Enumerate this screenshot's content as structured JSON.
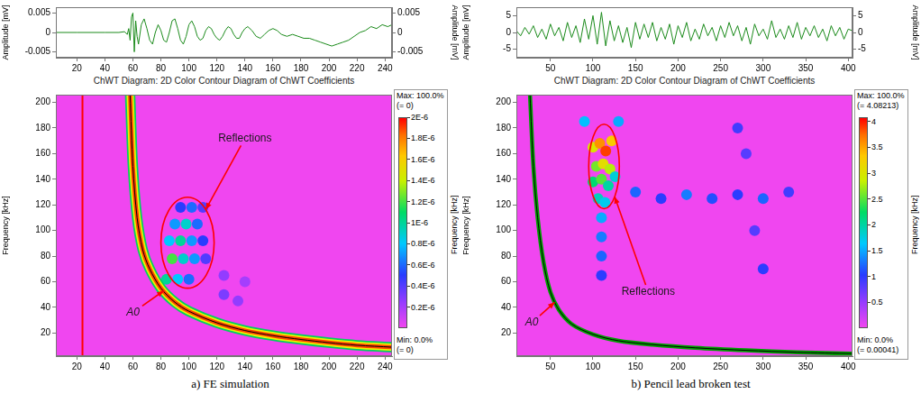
{
  "chart_data": [
    {
      "type": "line",
      "color": "#1a8a1a",
      "grid": false,
      "x": [
        5,
        20,
        40,
        50,
        54,
        56,
        57,
        58,
        59,
        60,
        61,
        62,
        63,
        64,
        66,
        68,
        70,
        72,
        74,
        76,
        78,
        80,
        82,
        84,
        86,
        88,
        90,
        92,
        94,
        96,
        98,
        100,
        102,
        104,
        106,
        108,
        110,
        112,
        114,
        116,
        118,
        120,
        122,
        124,
        126,
        128,
        130,
        132,
        134,
        136,
        138,
        140,
        142,
        145,
        148,
        151,
        154,
        157,
        160,
        163,
        166,
        170,
        174,
        178,
        182,
        186,
        190,
        194,
        198,
        202,
        206,
        210,
        214,
        218,
        222,
        226,
        230,
        234,
        238,
        242,
        245
      ],
      "values": [
        0,
        0,
        0,
        0,
        0.0002,
        -0.0005,
        0.001,
        -0.002,
        0.004,
        0.005,
        -0.005,
        0.003,
        -0.001,
        -0.003,
        0.002,
        0.0035,
        0.001,
        -0.002,
        -0.003,
        0,
        0.002,
        0.0005,
        -0.002,
        -0.0025,
        0,
        0.003,
        0.0035,
        0.001,
        -0.002,
        -0.003,
        -0.001,
        0.002,
        0.003,
        0.0015,
        -0.001,
        -0.002,
        -0.0015,
        0.0005,
        0.0015,
        0.001,
        -0.0005,
        -0.0015,
        -0.002,
        -0.001,
        0.0005,
        0.0015,
        0.001,
        -0.0005,
        -0.0015,
        -0.0015,
        0,
        0.001,
        0.0015,
        0.0005,
        -0.001,
        -0.0015,
        -0.0005,
        0.0005,
        0.001,
        0.0005,
        -0.0005,
        -0.001,
        -0.0005,
        -0.001,
        -0.0015,
        -0.0015,
        -0.002,
        -0.0025,
        -0.003,
        -0.0035,
        -0.003,
        -0.0025,
        -0.002,
        -0.001,
        0,
        0.0005,
        0.0015,
        0.001,
        0.002,
        0.0015,
        0.002
      ],
      "xlim": [
        5,
        245
      ],
      "xticks": [
        20,
        40,
        60,
        80,
        100,
        120,
        140,
        160,
        180,
        200,
        220,
        240
      ],
      "ylim": [
        -0.0065,
        0.0065
      ],
      "yticks": [
        -0.005,
        0,
        0.005
      ],
      "y_label": "Amplitude [mV]",
      "y2lim": [
        -0.0065,
        0.0065
      ],
      "y2ticks": [
        -0.005,
        0,
        0.005
      ],
      "y2_label": "Amplitude [mV]"
    },
    {
      "type": "contour",
      "grid": false,
      "title": "ChWT Diagram: 2D Color Contour Diagram of ChWT Coefficients",
      "caption": "a) FE simulation",
      "xlim": [
        5,
        245
      ],
      "xticks": [
        20,
        40,
        60,
        80,
        100,
        120,
        140,
        160,
        180,
        200,
        220,
        240
      ],
      "ylim": [
        2,
        206
      ],
      "yticks": [
        20,
        40,
        60,
        80,
        100,
        120,
        140,
        160,
        180,
        200
      ],
      "y_label": "Frequency [kHz]",
      "y2_label": "Frequency [kHz]",
      "vline": {
        "x": 24,
        "color": "#ff0000"
      },
      "ridge": {
        "x": [
          58,
          60,
          63,
          67,
          72,
          80,
          90,
          100,
          120,
          140,
          160,
          180,
          200,
          220,
          245
        ],
        "y": [
          206,
          150,
          110,
          85,
          70,
          55,
          44,
          37,
          28,
          22,
          18,
          15,
          12.5,
          10.5,
          9
        ],
        "colors": [
          "#00d060",
          "#f0f000",
          "#ff4000",
          "#000000"
        ]
      },
      "cells": {
        "x": [
          84,
          92,
          100,
          88,
          96,
          104,
          112,
          86,
          94,
          102,
          110,
          90,
          98,
          106,
          94,
          102,
          110,
          125,
          135,
          125,
          140
        ],
        "y": [
          62,
          62,
          62,
          78,
          78,
          78,
          78,
          92,
          92,
          92,
          92,
          105,
          105,
          105,
          118,
          118,
          118,
          50,
          45,
          65,
          60
        ],
        "z": [
          1e-06,
          8e-07,
          6e-07,
          1.2e-06,
          9e-07,
          7e-07,
          4e-07,
          8e-07,
          1e-06,
          7e-07,
          5e-07,
          7e-07,
          9e-07,
          6e-07,
          5e-07,
          6e-07,
          4e-07,
          3e-07,
          2.5e-07,
          2.5e-07,
          2e-07
        ]
      },
      "colorbar": {
        "range": [
          0,
          2e-06
        ],
        "ticks": [
          {
            "value": 2e-06,
            "label": "2E-6"
          },
          {
            "value": 1.8e-06,
            "label": "1.8E-6"
          },
          {
            "value": 1.6e-06,
            "label": "1.6E-6"
          },
          {
            "value": 1.4e-06,
            "label": "1.4E-6"
          },
          {
            "value": 1.2e-06,
            "label": "1.2E-6"
          },
          {
            "value": 1e-06,
            "label": "1E-6"
          },
          {
            "value": 8e-07,
            "label": "0.8E-6"
          },
          {
            "value": 6e-07,
            "label": "0.6E-6"
          },
          {
            "value": 4e-07,
            "label": "0.4E-6"
          },
          {
            "value": 2e-07,
            "label": "0.2E-6"
          }
        ],
        "max_label": "Max: 100.0%",
        "max_note": "(= 0)",
        "min_label": "Min: 0.0%",
        "min_note": "(= 0)"
      },
      "annotations": [
        {
          "text": "Reflections",
          "at": [
            140,
            172
          ],
          "ellipse": {
            "x": [
              80,
              118
            ],
            "y": [
              55,
              126
            ]
          }
        },
        {
          "text": "A0",
          "at": [
            60,
            36
          ],
          "target": [
            82,
            53
          ]
        }
      ]
    },
    {
      "type": "line",
      "color": "#1a8a1a",
      "grid": false,
      "x": [
        10,
        15,
        20,
        25,
        30,
        35,
        40,
        45,
        50,
        55,
        60,
        65,
        70,
        75,
        80,
        85,
        90,
        95,
        100,
        105,
        110,
        115,
        120,
        125,
        130,
        135,
        140,
        145,
        150,
        155,
        160,
        165,
        170,
        175,
        180,
        185,
        190,
        195,
        200,
        205,
        210,
        215,
        220,
        225,
        230,
        235,
        240,
        245,
        250,
        255,
        260,
        265,
        270,
        275,
        280,
        285,
        290,
        295,
        300,
        305,
        310,
        315,
        320,
        325,
        330,
        335,
        340,
        345,
        350,
        355,
        360,
        365,
        370,
        375,
        380,
        385,
        390,
        395,
        400,
        405
      ],
      "values": [
        0.5,
        -1,
        1.5,
        -0.5,
        2,
        -1.5,
        1,
        -2,
        2.5,
        -1,
        1.5,
        -2.5,
        3,
        -1.5,
        2,
        -3,
        4,
        -2,
        5,
        -3.5,
        6,
        -4,
        3.5,
        -2.5,
        2,
        -3,
        1.5,
        -4.5,
        3,
        -2,
        2.5,
        -1.5,
        3,
        -2.5,
        1.5,
        -2,
        2.5,
        -3.5,
        2,
        -1.5,
        3,
        -2.5,
        1,
        -2,
        2.5,
        -1,
        1.5,
        -2.5,
        2,
        -1.5,
        3,
        -1,
        2,
        -2.5,
        1.5,
        -3.5,
        2.5,
        -1,
        1,
        -2,
        3.5,
        -1.5,
        1,
        -2,
        2,
        -1.5,
        3,
        -2,
        1.5,
        -1,
        2,
        -1.5,
        1,
        -2.5,
        2,
        -1,
        1.5,
        -2,
        1,
        0.5
      ],
      "xlim": [
        10,
        405
      ],
      "xticks": [
        50,
        100,
        150,
        200,
        250,
        300,
        350,
        400
      ],
      "ylim": [
        -7.5,
        7.5
      ],
      "yticks": [
        -5,
        0,
        5
      ],
      "y_label": "Amplitude [mV]",
      "y2lim": [
        -7.5,
        7.5
      ],
      "y2ticks": [
        -5,
        0,
        5
      ],
      "y2_label": "Amplitude [mV]"
    },
    {
      "type": "contour",
      "grid": false,
      "title": "ChWT Diagram: 2D Color Contour Diagram of ChWT Coefficients",
      "caption": "b) Pencil lead broken test",
      "xlim": [
        10,
        405
      ],
      "xticks": [
        50,
        100,
        150,
        200,
        250,
        300,
        350,
        400
      ],
      "ylim": [
        2,
        206
      ],
      "yticks": [
        20,
        40,
        60,
        80,
        100,
        120,
        140,
        160,
        180,
        200
      ],
      "y_label": "Frequency [kHz]",
      "y2_label": "Frequency [kHz]",
      "ridge": {
        "x": [
          26,
          30,
          35,
          42,
          50,
          60,
          75,
          100,
          130,
          170,
          220,
          280,
          340,
          405
        ],
        "y": [
          206,
          150,
          110,
          75,
          52,
          38,
          27,
          19,
          14,
          11,
          8.5,
          6.5,
          5,
          4
        ],
        "colors": [
          "#00a000",
          "#000000"
        ]
      },
      "cells": {
        "x": [
          100,
          108,
          115,
          122,
          104,
          112,
          120,
          100,
          110,
          118,
          126,
          106,
          114,
          110,
          110,
          110,
          110,
          150,
          180,
          210,
          240,
          270,
          300,
          330,
          270,
          280,
          290,
          300,
          90,
          130
        ],
        "y": [
          165,
          168,
          162,
          170,
          150,
          152,
          148,
          138,
          140,
          135,
          142,
          125,
          122,
          110,
          95,
          80,
          65,
          130,
          125,
          128,
          125,
          128,
          125,
          130,
          180,
          160,
          100,
          70,
          185,
          185
        ],
        "z": [
          3.0,
          3.6,
          3.9,
          3.3,
          2.6,
          3.1,
          2.8,
          2.2,
          2.5,
          2.0,
          1.8,
          1.9,
          1.7,
          1.5,
          1.3,
          1.2,
          1.0,
          1.2,
          1.0,
          1.3,
          1.1,
          1.0,
          1.2,
          0.9,
          0.9,
          0.8,
          0.8,
          1.0,
          1.6,
          1.5
        ]
      },
      "colorbar": {
        "range": [
          0.00041,
          4.08213
        ],
        "ticks": [
          4,
          3.5,
          3,
          2.5,
          2,
          1.5,
          1,
          0.5
        ],
        "max_label": "Max: 100.0%",
        "max_note": "(= 4.08213)",
        "min_label": "Min: 0.0%",
        "min_note": "(= 0.00041)"
      },
      "annotations": [
        {
          "text": "Reflections",
          "at": [
            165,
            52
          ],
          "ellipse": {
            "x": [
              95,
              131
            ],
            "y": [
              117,
              183
            ]
          }
        },
        {
          "text": "A0",
          "at": [
            28,
            28
          ],
          "target": [
            55,
            44
          ]
        }
      ]
    }
  ]
}
